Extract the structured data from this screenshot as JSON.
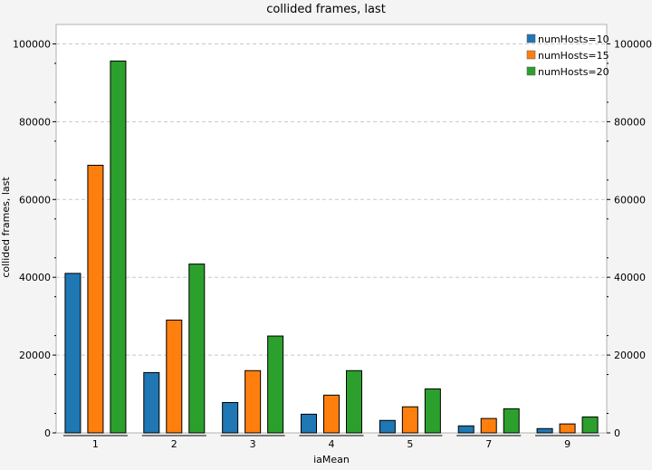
{
  "chart_data": {
    "type": "bar",
    "title": "collided frames, last",
    "xlabel": "iaMean",
    "ylabel": "collided frames, last",
    "categories": [
      "1",
      "2",
      "3",
      "4",
      "5",
      "7",
      "9"
    ],
    "series": [
      {
        "name": "numHosts=10",
        "color": "#1f77b4",
        "values": [
          41000,
          15500,
          7800,
          4800,
          3200,
          1800,
          1100
        ]
      },
      {
        "name": "numHosts=15",
        "color": "#ff7f0e",
        "values": [
          68800,
          29000,
          16000,
          9700,
          6700,
          3700,
          2300
        ]
      },
      {
        "name": "numHosts=20",
        "color": "#2ca02c",
        "values": [
          95600,
          43400,
          24900,
          16000,
          11300,
          6200,
          4100
        ]
      }
    ],
    "ylim": [
      0,
      105000
    ],
    "yticks": [
      0,
      20000,
      40000,
      60000,
      80000,
      100000
    ],
    "ytick_labels": [
      "0",
      "20000",
      "40000",
      "60000",
      "80000",
      "100000"
    ],
    "grid": true,
    "legend": "top-right"
  }
}
